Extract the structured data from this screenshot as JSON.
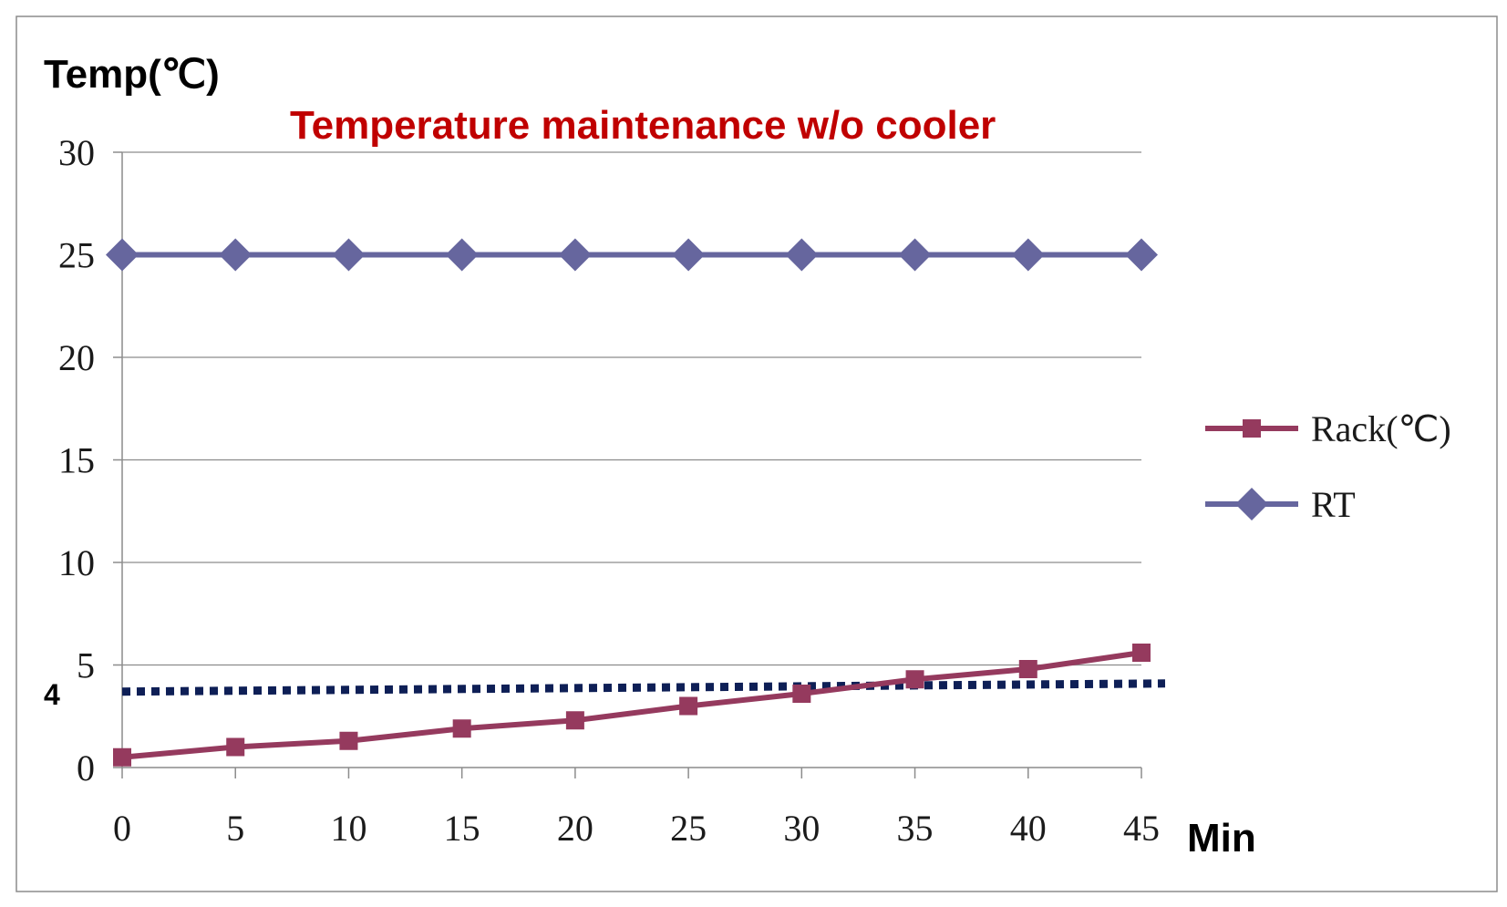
{
  "chart_data": {
    "type": "line",
    "title": "Temperature maintenance w/o cooler",
    "ylabel": "Temp(℃)",
    "xlabel": "Min",
    "x": [
      0,
      5,
      10,
      15,
      20,
      25,
      30,
      35,
      40,
      45
    ],
    "x_tick_labels": [
      "0",
      "5",
      "10",
      "15",
      "20",
      "25",
      "30",
      "35",
      "40",
      "45"
    ],
    "ylim": [
      0,
      30
    ],
    "y_ticks": [
      0,
      5,
      10,
      15,
      20,
      25,
      30
    ],
    "y_tick_labels": [
      "0",
      "5",
      "10",
      "15",
      "20",
      "25",
      "30"
    ],
    "grid": "horizontal",
    "legend_position": "right",
    "series": [
      {
        "name": "Rack(℃)",
        "marker": "square",
        "color": "#953a5e",
        "values": [
          0.5,
          1.0,
          1.3,
          1.9,
          2.3,
          3.0,
          3.6,
          4.3,
          4.8,
          5.6
        ]
      },
      {
        "name": "RT",
        "marker": "diamond",
        "color": "#66669e",
        "values": [
          25,
          25,
          25,
          25,
          25,
          25,
          25,
          25,
          25,
          25
        ]
      }
    ],
    "reference_line": {
      "label": "4",
      "style": "dotted",
      "color": "#0e1f56",
      "y_start": 3.7,
      "y_end": 4.1
    }
  }
}
